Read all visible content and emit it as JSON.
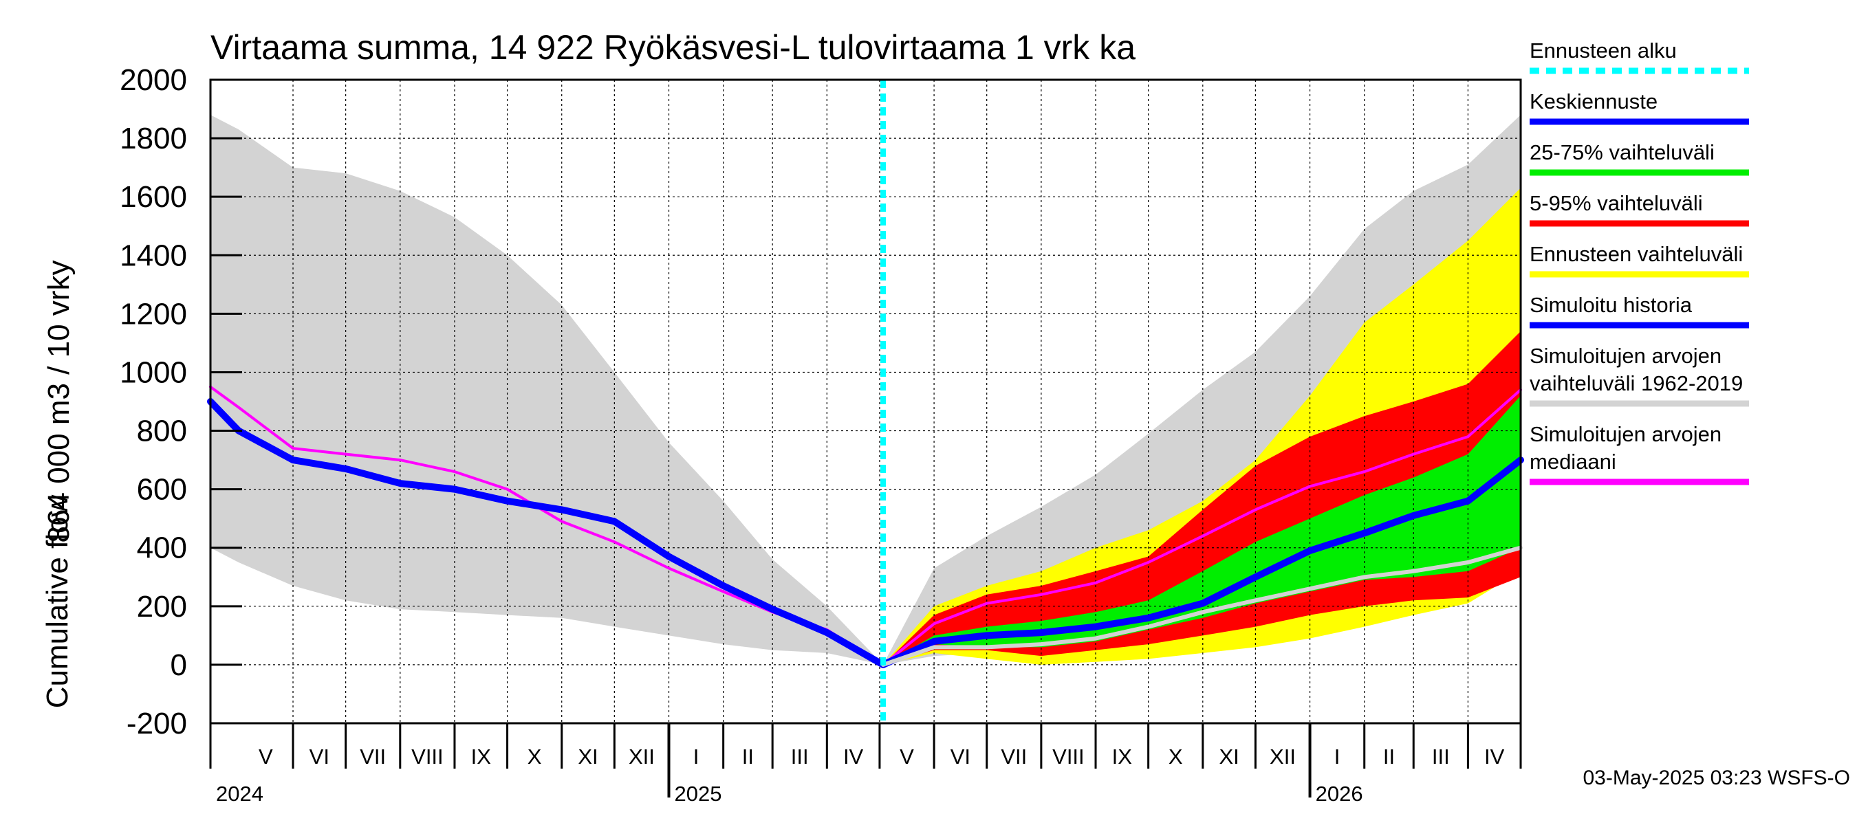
{
  "chart_data": {
    "type": "area",
    "title": "Virtaama summa, 14 922 Ryökäsvesi-L tulovirtaama 1 vrk ka",
    "ylabel_line1": "864 000 m3 / 10 vrky",
    "ylabel_line2": "Cumulative flow",
    "ylim": [
      -200,
      2000
    ],
    "yticks": [
      "-200",
      "0",
      "200",
      "400",
      "600",
      "800",
      "1000",
      "1200",
      "1400",
      "1600",
      "1800",
      "2000"
    ],
    "ytick_values": [
      -200,
      0,
      200,
      400,
      600,
      800,
      1000,
      1200,
      1400,
      1600,
      1800,
      2000
    ],
    "xlim": [
      "2024-04-15",
      "2026-05-01"
    ],
    "months": [
      {
        "label": "V",
        "start": "2024-05-01",
        "end": "2024-06-01"
      },
      {
        "label": "VI",
        "start": "2024-06-01",
        "end": "2024-07-01"
      },
      {
        "label": "VII",
        "start": "2024-07-01",
        "end": "2024-08-01"
      },
      {
        "label": "VIII",
        "start": "2024-08-01",
        "end": "2024-09-01"
      },
      {
        "label": "IX",
        "start": "2024-09-01",
        "end": "2024-10-01"
      },
      {
        "label": "X",
        "start": "2024-10-01",
        "end": "2024-11-01"
      },
      {
        "label": "XI",
        "start": "2024-11-01",
        "end": "2024-12-01"
      },
      {
        "label": "XII",
        "start": "2024-12-01",
        "end": "2025-01-01"
      },
      {
        "label": "I",
        "start": "2025-01-01",
        "end": "2025-02-01"
      },
      {
        "label": "II",
        "start": "2025-02-01",
        "end": "2025-03-01"
      },
      {
        "label": "III",
        "start": "2025-03-01",
        "end": "2025-04-01"
      },
      {
        "label": "IV",
        "start": "2025-04-01",
        "end": "2025-05-01"
      },
      {
        "label": "V",
        "start": "2025-05-01",
        "end": "2025-06-01"
      },
      {
        "label": "VI",
        "start": "2025-06-01",
        "end": "2025-07-01"
      },
      {
        "label": "VII",
        "start": "2025-07-01",
        "end": "2025-08-01"
      },
      {
        "label": "VIII",
        "start": "2025-08-01",
        "end": "2025-09-01"
      },
      {
        "label": "IX",
        "start": "2025-09-01",
        "end": "2025-10-01"
      },
      {
        "label": "X",
        "start": "2025-10-01",
        "end": "2025-11-01"
      },
      {
        "label": "XI",
        "start": "2025-11-01",
        "end": "2025-12-01"
      },
      {
        "label": "XII",
        "start": "2025-12-01",
        "end": "2026-01-01"
      },
      {
        "label": "I",
        "start": "2026-01-01",
        "end": "2026-02-01"
      },
      {
        "label": "II",
        "start": "2026-02-01",
        "end": "2026-03-01"
      },
      {
        "label": "III",
        "start": "2026-03-01",
        "end": "2026-04-01"
      },
      {
        "label": "IV",
        "start": "2026-04-01",
        "end": "2026-05-01"
      }
    ],
    "years": [
      {
        "label": "2024",
        "date": "2024-04-15"
      },
      {
        "label": "2025",
        "date": "2025-01-01"
      },
      {
        "label": "2026",
        "date": "2026-01-01"
      }
    ],
    "forecast_start": "2025-05-03",
    "grid": true,
    "legend_position": "right",
    "series": [
      {
        "name": "Simuloitujen arvojen vaihteluväli 1962-2019",
        "kind": "band",
        "color": "#d3d3d3",
        "x": [
          "2024-04-15",
          "2024-05-01",
          "2024-06-01",
          "2024-07-01",
          "2024-08-01",
          "2024-09-01",
          "2024-10-01",
          "2024-11-01",
          "2024-12-01",
          "2025-01-01",
          "2025-02-01",
          "2025-03-01",
          "2025-04-01",
          "2025-05-03",
          "2025-06-01",
          "2025-07-01",
          "2025-08-01",
          "2025-09-01",
          "2025-10-01",
          "2025-11-01",
          "2025-12-01",
          "2026-01-01",
          "2026-02-01",
          "2026-03-01",
          "2026-04-01",
          "2026-05-01"
        ],
        "upper": [
          1880,
          1830,
          1700,
          1680,
          1620,
          1530,
          1400,
          1230,
          1000,
          760,
          560,
          360,
          200,
          0,
          330,
          440,
          540,
          650,
          790,
          940,
          1070,
          1260,
          1490,
          1620,
          1710,
          1880
        ],
        "lower": [
          400,
          350,
          270,
          220,
          190,
          180,
          170,
          160,
          130,
          100,
          70,
          50,
          40,
          0,
          30,
          40,
          50,
          60,
          70,
          90,
          110,
          150,
          200,
          230,
          260,
          320
        ]
      },
      {
        "name": "Ennusteen vaihteluväli",
        "kind": "band",
        "color": "#ffff00",
        "x": [
          "2025-05-03",
          "2025-06-01",
          "2025-07-01",
          "2025-08-01",
          "2025-09-01",
          "2025-10-01",
          "2025-11-01",
          "2025-12-01",
          "2026-01-01",
          "2026-02-01",
          "2026-03-01",
          "2026-04-01",
          "2026-05-01"
        ],
        "upper": [
          0,
          200,
          270,
          320,
          400,
          460,
          560,
          700,
          920,
          1170,
          1300,
          1450,
          1630
        ],
        "lower": [
          0,
          40,
          20,
          0,
          10,
          20,
          40,
          60,
          90,
          130,
          170,
          210,
          320
        ]
      },
      {
        "name": "5-95% vaihteluväli",
        "kind": "band",
        "color": "#ff0000",
        "x": [
          "2025-05-03",
          "2025-06-01",
          "2025-07-01",
          "2025-08-01",
          "2025-09-01",
          "2025-10-01",
          "2025-11-01",
          "2025-12-01",
          "2026-01-01",
          "2026-02-01",
          "2026-03-01",
          "2026-04-01",
          "2026-05-01"
        ],
        "upper": [
          0,
          170,
          240,
          270,
          320,
          370,
          530,
          680,
          780,
          850,
          900,
          960,
          1140
        ],
        "lower": [
          0,
          50,
          50,
          30,
          50,
          70,
          100,
          130,
          170,
          200,
          220,
          230,
          300
        ]
      },
      {
        "name": "25-75% vaihteluväli",
        "kind": "band",
        "color": "#00ee00",
        "x": [
          "2025-05-03",
          "2025-06-01",
          "2025-07-01",
          "2025-08-01",
          "2025-09-01",
          "2025-10-01",
          "2025-11-01",
          "2025-12-01",
          "2026-01-01",
          "2026-02-01",
          "2026-03-01",
          "2026-04-01",
          "2026-05-01"
        ],
        "upper": [
          0,
          100,
          130,
          150,
          180,
          220,
          320,
          420,
          500,
          580,
          640,
          720,
          920
        ],
        "lower": [
          0,
          70,
          60,
          60,
          80,
          120,
          160,
          210,
          250,
          290,
          300,
          320,
          400
        ]
      },
      {
        "name": "Simuloitujen arvojen mediaani",
        "kind": "line",
        "color": "#ff00ff",
        "x": [
          "2024-04-15",
          "2024-05-01",
          "2024-06-01",
          "2024-07-01",
          "2024-08-01",
          "2024-09-01",
          "2024-10-01",
          "2024-11-01",
          "2024-12-01",
          "2025-01-01",
          "2025-02-01",
          "2025-03-01",
          "2025-04-01",
          "2025-05-03",
          "2025-06-01",
          "2025-07-01",
          "2025-08-01",
          "2025-09-01",
          "2025-10-01",
          "2025-11-01",
          "2025-12-01",
          "2026-01-01",
          "2026-02-01",
          "2026-03-01",
          "2026-04-01",
          "2026-05-01"
        ],
        "y": [
          950,
          880,
          740,
          720,
          700,
          660,
          600,
          490,
          420,
          330,
          250,
          180,
          120,
          0,
          140,
          210,
          240,
          280,
          350,
          440,
          530,
          610,
          660,
          720,
          780,
          940
        ]
      },
      {
        "name": "Simuloitu historia",
        "kind": "line",
        "color": "#0000ff",
        "x": [
          "2024-04-15",
          "2024-05-01",
          "2024-06-01",
          "2024-07-01",
          "2024-08-01",
          "2024-09-01",
          "2024-10-01",
          "2024-11-01",
          "2024-12-01",
          "2025-01-01",
          "2025-02-01",
          "2025-03-01",
          "2025-04-01",
          "2025-05-03"
        ],
        "y": [
          900,
          800,
          700,
          670,
          620,
          600,
          560,
          530,
          490,
          370,
          270,
          190,
          110,
          0
        ]
      },
      {
        "name": "Keskiennuste",
        "kind": "line",
        "color": "#0000ff",
        "x": [
          "2025-05-03",
          "2025-06-01",
          "2025-07-01",
          "2025-08-01",
          "2025-09-01",
          "2025-10-01",
          "2025-11-01",
          "2025-12-01",
          "2026-01-01",
          "2026-02-01",
          "2026-03-01",
          "2026-04-01",
          "2026-05-01"
        ],
        "y": [
          0,
          80,
          100,
          110,
          130,
          160,
          210,
          300,
          390,
          450,
          510,
          560,
          700
        ]
      },
      {
        "name": "",
        "kind": "line",
        "color": "#d3d3d3",
        "x": [
          "2025-05-03",
          "2025-06-01",
          "2025-07-01",
          "2025-08-01",
          "2025-09-01",
          "2025-10-01",
          "2025-11-01",
          "2025-12-01",
          "2026-01-01",
          "2026-02-01",
          "2026-03-01",
          "2026-04-01",
          "2026-05-01"
        ],
        "y": [
          0,
          60,
          60,
          70,
          90,
          130,
          180,
          220,
          260,
          300,
          320,
          350,
          400
        ]
      }
    ],
    "legend": [
      {
        "label": "Ennusteen alku",
        "color": "#00ffff",
        "style": "dotted"
      },
      {
        "label": "Keskiennuste",
        "color": "#0000ff",
        "style": "solid"
      },
      {
        "label": "25-75% vaihteluväli",
        "color": "#00ee00",
        "style": "solid"
      },
      {
        "label": "5-95% vaihteluväli",
        "color": "#ff0000",
        "style": "solid"
      },
      {
        "label": "Ennusteen vaihteluväli",
        "color": "#ffff00",
        "style": "solid"
      },
      {
        "label": "Simuloitu historia",
        "color": "#0000ff",
        "style": "solid"
      },
      {
        "label": "Simuloitujen arvojen\nvaihteluväli 1962-2019",
        "color": "#d3d3d3",
        "style": "solid"
      },
      {
        "label": "Simuloitujen arvojen\nmediaani",
        "color": "#ff00ff",
        "style": "solid"
      }
    ],
    "footer": "03-May-2025 03:23 WSFS-O"
  }
}
